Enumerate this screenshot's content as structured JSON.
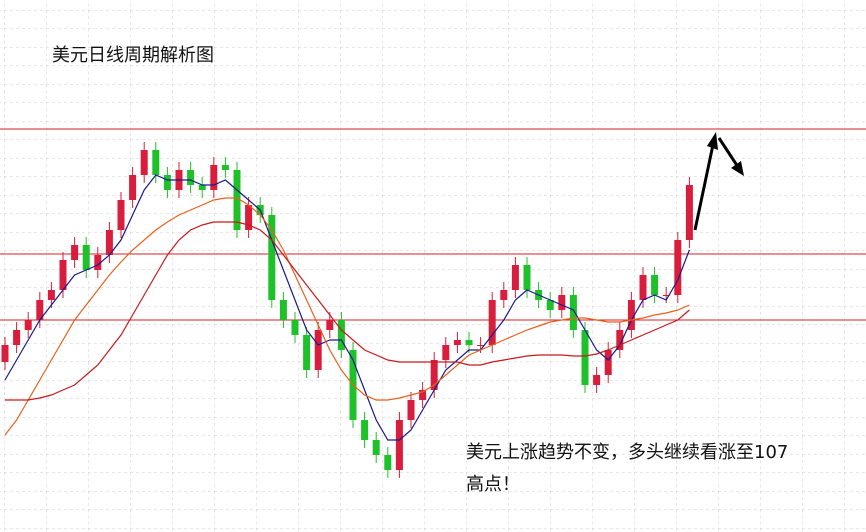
{
  "chart_data": {
    "type": "candlestick",
    "title": "美元日线周期解析图",
    "annotation": [
      "美元上涨趋势不变，多头继续看涨至107",
      "高点！"
    ],
    "ylim": [
      0,
      532
    ],
    "up_color": "#d81e3c",
    "down_color": "#1fc12a",
    "open": [
      170,
      187,
      202,
      212,
      232,
      242,
      272,
      287,
      262,
      277,
      302,
      332,
      357,
      382,
      357,
      342,
      362,
      347,
      342,
      367,
      362,
      302,
      327,
      317,
      232,
      212,
      197,
      162,
      202,
      212,
      182,
      112,
      92,
      77,
      62,
      112,
      132,
      142,
      172,
      187,
      192,
      187,
      187,
      232,
      242,
      267,
      242,
      232,
      222,
      237,
      202,
      147,
      157,
      182,
      202,
      232,
      257,
      237,
      237,
      292
    ],
    "high": [
      195,
      210,
      220,
      240,
      250,
      280,
      295,
      295,
      285,
      310,
      340,
      365,
      390,
      390,
      365,
      370,
      370,
      355,
      375,
      375,
      370,
      335,
      335,
      325,
      240,
      220,
      205,
      210,
      220,
      220,
      190,
      120,
      100,
      85,
      120,
      140,
      150,
      180,
      195,
      200,
      200,
      195,
      240,
      250,
      275,
      275,
      250,
      240,
      245,
      245,
      210,
      165,
      190,
      210,
      240,
      265,
      265,
      245,
      300,
      355
    ],
    "low": [
      162,
      179,
      194,
      204,
      224,
      234,
      264,
      254,
      254,
      269,
      294,
      324,
      349,
      349,
      334,
      334,
      339,
      334,
      334,
      354,
      294,
      294,
      309,
      224,
      204,
      189,
      154,
      154,
      194,
      174,
      104,
      84,
      69,
      54,
      54,
      104,
      124,
      134,
      164,
      179,
      179,
      179,
      179,
      224,
      234,
      234,
      224,
      214,
      214,
      194,
      139,
      139,
      149,
      174,
      194,
      224,
      229,
      229,
      229,
      284
    ],
    "close": [
      187,
      202,
      212,
      232,
      242,
      272,
      287,
      262,
      277,
      302,
      332,
      357,
      382,
      357,
      342,
      362,
      347,
      342,
      367,
      362,
      302,
      327,
      317,
      232,
      212,
      197,
      162,
      202,
      212,
      182,
      112,
      92,
      77,
      62,
      112,
      132,
      142,
      172,
      187,
      192,
      187,
      187,
      232,
      242,
      267,
      242,
      232,
      222,
      237,
      202,
      147,
      157,
      182,
      202,
      232,
      257,
      237,
      237,
      292,
      347
    ],
    "lines": [
      {
        "color": "#1a1a8c",
        "values": [
          152,
          172,
          192,
          212,
          227,
          242,
          257,
          262,
          267,
          277,
          292,
          317,
          342,
          357,
          352,
          352,
          352,
          347,
          347,
          352,
          342,
          332,
          322,
          292,
          262,
          232,
          202,
          187,
          192,
          192,
          172,
          142,
          112,
          92,
          92,
          102,
          122,
          142,
          162,
          172,
          182,
          182,
          197,
          212,
          232,
          242,
          237,
          232,
          227,
          222,
          202,
          182,
          172,
          187,
          212,
          232,
          237,
          232,
          252,
          282
        ]
      },
      {
        "color": "#e8601c",
        "values": [
          97,
          112,
          132,
          152,
          172,
          192,
          212,
          227,
          242,
          257,
          270,
          282,
          292,
          302,
          310,
          317,
          322,
          327,
          332,
          334,
          334,
          327,
          317,
          302,
          282,
          257,
          232,
          207,
          182,
          162,
          147,
          137,
          132,
          132,
          134,
          137,
          140,
          147,
          157,
          167,
          177,
          182,
          187,
          192,
          197,
          202,
          206,
          210,
          212,
          214,
          214,
          212,
          210,
          210,
          212,
          214,
          217,
          219,
          222,
          227
        ]
      },
      {
        "color": "#c8191e",
        "values": [
          132,
          132,
          132,
          134,
          137,
          142,
          147,
          157,
          167,
          182,
          197,
          217,
          237,
          257,
          277,
          292,
          302,
          307,
          310,
          310,
          310,
          307,
          302,
          292,
          277,
          262,
          247,
          232,
          217,
          202,
          192,
          182,
          177,
          172,
          170,
          170,
          170,
          170,
          170,
          170,
          167,
          167,
          170,
          172,
          174,
          176,
          177,
          177,
          177,
          176,
          176,
          178,
          182,
          187,
          192,
          197,
          202,
          207,
          212,
          222
        ]
      }
    ],
    "levels": {
      "color": "#d4202a",
      "values": [
        403,
        278,
        212
      ]
    }
  }
}
